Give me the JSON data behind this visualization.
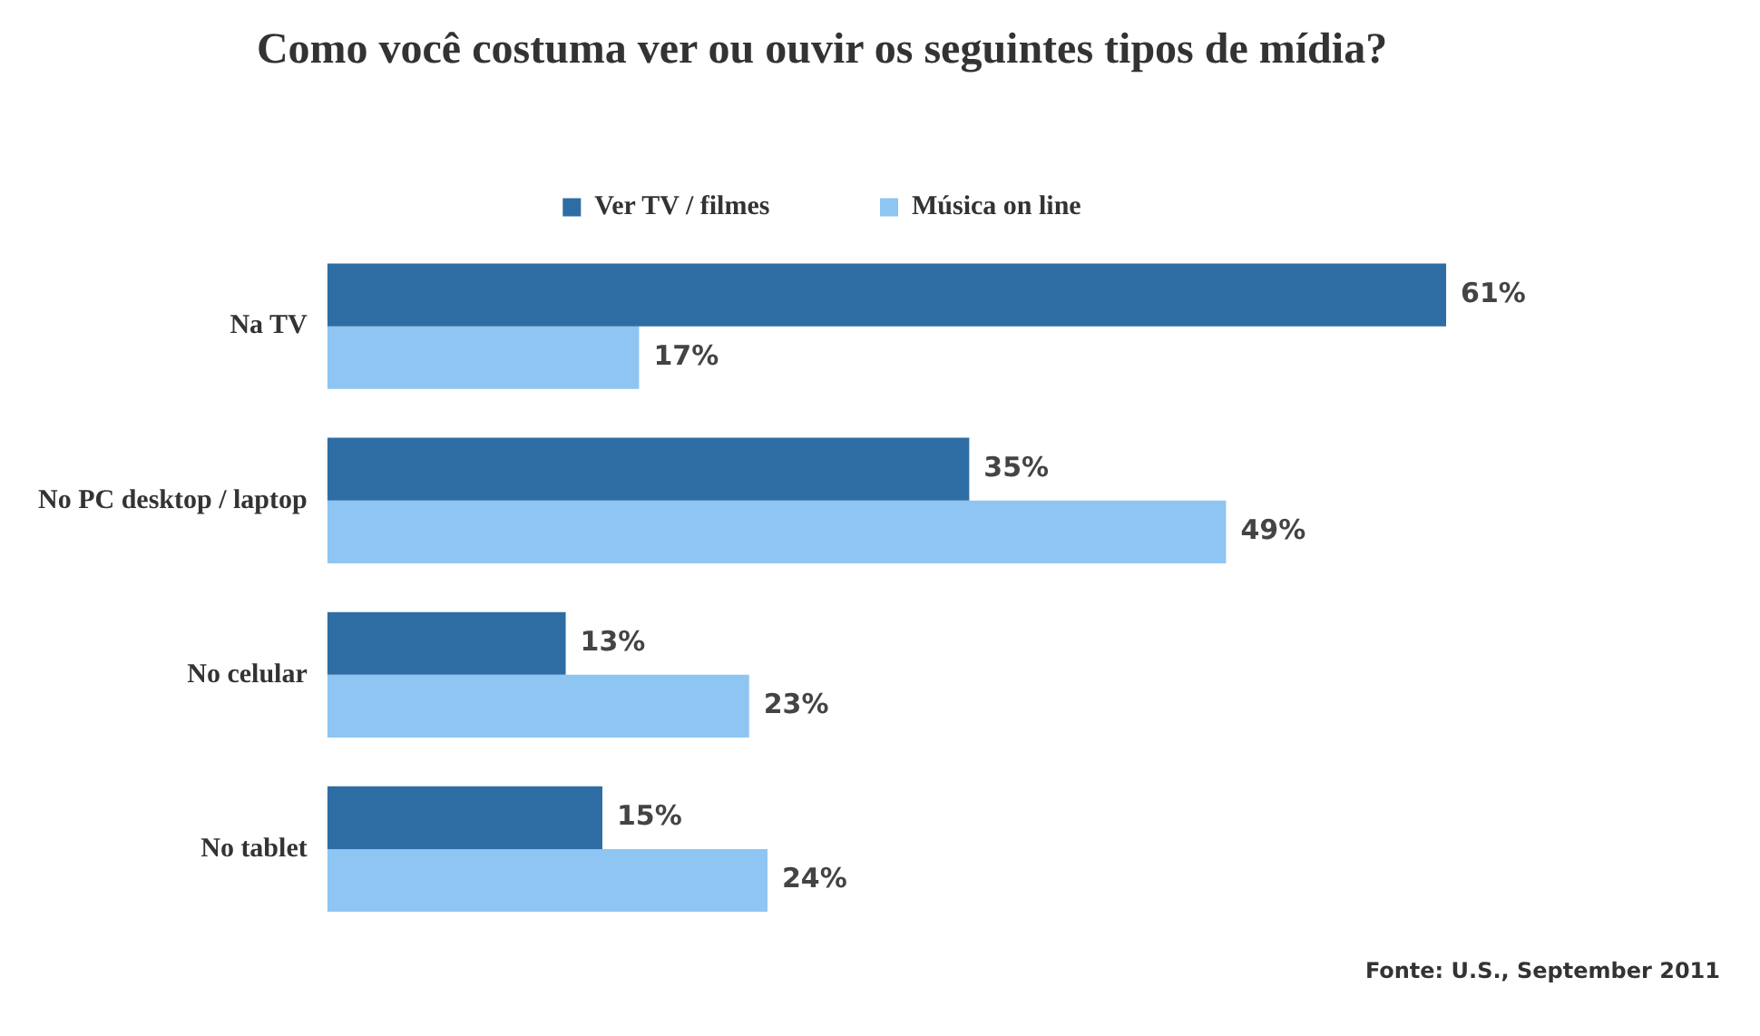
{
  "chart_data": {
    "type": "bar",
    "orientation": "horizontal",
    "title": "Como você costuma ver ou ouvir os seguintes tipos de mídia?",
    "categories": [
      "Na TV",
      "No PC desktop / laptop",
      "No celular",
      "No tablet"
    ],
    "series": [
      {
        "name": "Ver TV / filmes",
        "color": "#2e6da4",
        "values": [
          61,
          35,
          13,
          15
        ],
        "value_labels": [
          "61%",
          "35%",
          "13%",
          "15%"
        ]
      },
      {
        "name": "Música on line",
        "color": "#8ec5f2",
        "values": [
          17,
          49,
          23,
          24
        ],
        "value_labels": [
          "17%",
          "49%",
          "23%",
          "24%"
        ]
      }
    ],
    "legend": "top",
    "annotations": [
      "Fonte: U.S., September 2011"
    ]
  }
}
